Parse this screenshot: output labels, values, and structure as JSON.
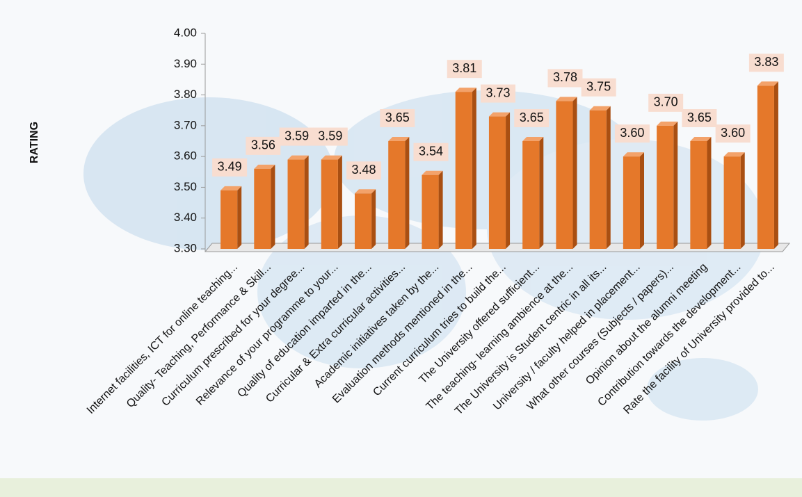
{
  "chart_data": {
    "type": "bar",
    "y_label": "RATING",
    "categories": [
      "Internet facilities, ICT for online teaching...",
      "Quality- Teaching, Performance & Skill...",
      "Curriculum prescribed for your degree...",
      "Relevance of your programme to your...",
      "Quality of education imparted in the...",
      "Curricular & Extra curricular activities...",
      "Academic initiatives taken by the...",
      "Evaluation methods mentioned in the...",
      "Current curriculum tries to build the...",
      "The University offered sufficient...",
      "The teaching- learning ambience at the...",
      "The University is Student centric in all its...",
      "University / faculty helped in placement...",
      "What other courses (Subjects / papers)...",
      "Opinion about the alumni meeting",
      "Contribution towards the development...",
      "Rate the facility of University provided to..."
    ],
    "values": [
      3.49,
      3.56,
      3.59,
      3.59,
      3.48,
      3.65,
      3.54,
      3.81,
      3.73,
      3.65,
      3.78,
      3.75,
      3.6,
      3.7,
      3.65,
      3.6,
      3.83
    ],
    "value_labels": [
      "3.49",
      "3.56",
      "3.59",
      "3.59",
      "3.48",
      "3.65",
      "3.54",
      "3.81",
      "3.73",
      "3.65",
      "3.78",
      "3.75",
      "3.60",
      "3.70",
      "3.65",
      "3.60",
      "3.83"
    ],
    "color": "#e5782a",
    "ylim": [
      3.3,
      4.0
    ],
    "yticks": [
      {
        "value": 3.3,
        "label": "3.30"
      },
      {
        "value": 3.4,
        "label": "3.40"
      },
      {
        "value": 3.5,
        "label": "3.50"
      },
      {
        "value": 3.6,
        "label": "3.60"
      },
      {
        "value": 3.7,
        "label": "3.70"
      },
      {
        "value": 3.8,
        "label": "3.80"
      },
      {
        "value": 3.9,
        "label": "3.90"
      },
      {
        "value": 4.0,
        "label": "4.00"
      }
    ]
  }
}
